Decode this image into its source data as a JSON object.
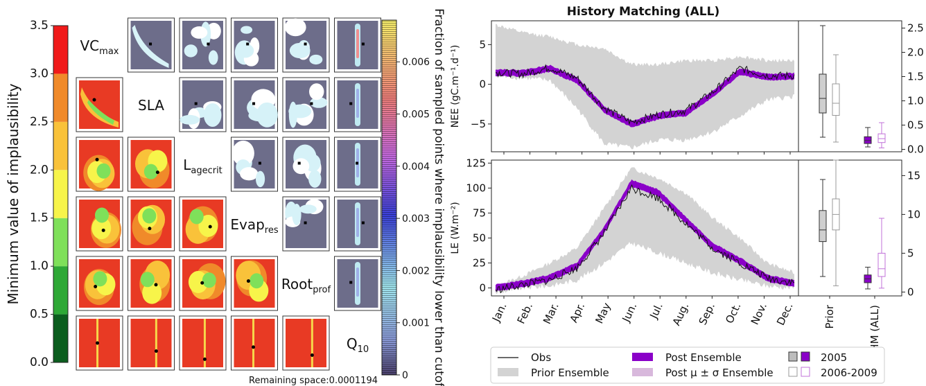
{
  "figure": {
    "title": "History Matching (ALL)",
    "footer": "Remaining space:0.0001194"
  },
  "chart_data": [
    {
      "type": "heatmap",
      "name": "implausibility-matrix",
      "parameters": [
        {
          "main": "VC",
          "sub": "max"
        },
        {
          "main": "SLA",
          "sub": ""
        },
        {
          "main": "L",
          "sub": "agecrit"
        },
        {
          "main": "Evap",
          "sub": "res"
        },
        {
          "main": "Root",
          "sub": "prof"
        },
        {
          "main": "Q",
          "sub": "10"
        }
      ],
      "left_colorbar": {
        "label": "Minimum value of implausibility",
        "ticks": [
          "0.0",
          "0.5",
          "1.0",
          "1.5",
          "2.0",
          "2.5",
          "3.0",
          "3.5"
        ],
        "ylim": [
          0,
          3.5
        ],
        "bands": [
          {
            "from": 0.0,
            "to": 0.5,
            "color": "#0b5d1e"
          },
          {
            "from": 0.5,
            "to": 1.0,
            "color": "#2ea836"
          },
          {
            "from": 1.0,
            "to": 1.5,
            "color": "#7fe05a"
          },
          {
            "from": 1.5,
            "to": 2.0,
            "color": "#f7f44a"
          },
          {
            "from": 2.0,
            "to": 2.5,
            "color": "#f9c23a"
          },
          {
            "from": 2.5,
            "to": 3.0,
            "color": "#f08a2a"
          },
          {
            "from": 3.0,
            "to": 3.5,
            "color": "#f01a1a"
          }
        ]
      },
      "right_colorbar": {
        "label": "Fraction of sampled points where implausibility lower than cutoff",
        "ticks": [
          "0",
          "0.001",
          "0.002",
          "0.003",
          "0.004",
          "0.005",
          "0.006"
        ],
        "ylim": [
          0,
          0.0068
        ]
      }
    },
    {
      "type": "line",
      "name": "nee-timeseries",
      "ylabel": "NEE (gC.m⁻¹.d⁻¹)",
      "ylim": [
        -8.5,
        8
      ],
      "yticks": [
        "−5",
        "0",
        "5"
      ],
      "x": [
        "Jan.",
        "Feb.",
        "Mar.",
        "Apr.",
        "May",
        "Jun.",
        "Jul.",
        "Aug.",
        "Sep.",
        "Oct.",
        "Nov.",
        "Dec."
      ],
      "series": [
        {
          "name": "Obs",
          "values": [
            1.5,
            1.3,
            2.1,
            0.8,
            -3.0,
            -4.8,
            -3.8,
            -3.3,
            -1.0,
            2.0,
            1.1,
            1.1
          ]
        },
        {
          "name": "Post Ensemble",
          "values": [
            1.5,
            1.4,
            2.0,
            0.5,
            -3.2,
            -5.0,
            -4.0,
            -3.6,
            -1.2,
            1.6,
            0.9,
            1.0
          ]
        },
        {
          "name": "Prior Ensemble",
          "lower": [
            1.0,
            0.8,
            0.5,
            -3.0,
            -7.5,
            -8.0,
            -7.0,
            -7.0,
            -6.0,
            -4.0,
            -2.0,
            -1.5
          ],
          "upper": [
            7.5,
            6.5,
            6.0,
            5.0,
            4.5,
            2.5,
            2.5,
            3.0,
            3.0,
            3.5,
            3.0,
            3.0
          ]
        }
      ]
    },
    {
      "type": "line",
      "name": "le-timeseries",
      "ylabel": "LE (W.m⁻²)",
      "ylim": [
        -8,
        128
      ],
      "yticks": [
        "0",
        "25",
        "50",
        "75",
        "100",
        "125"
      ],
      "x": [
        "Jan.",
        "Feb.",
        "Mar.",
        "Apr.",
        "May",
        "Jun.",
        "Jul.",
        "Aug.",
        "Sep.",
        "Oct.",
        "Nov.",
        "Dec."
      ],
      "series": [
        {
          "name": "Obs",
          "values": [
            -2,
            3,
            8,
            20,
            55,
            100,
            90,
            65,
            40,
            25,
            10,
            5
          ]
        },
        {
          "name": "Post Ensemble",
          "values": [
            0,
            4,
            10,
            22,
            58,
            105,
            95,
            68,
            42,
            27,
            10,
            4
          ]
        },
        {
          "name": "Prior Ensemble",
          "lower": [
            -5,
            0,
            2,
            8,
            25,
            45,
            35,
            25,
            15,
            8,
            2,
            0
          ],
          "upper": [
            2,
            12,
            25,
            40,
            80,
            120,
            110,
            95,
            70,
            50,
            25,
            15
          ]
        }
      ]
    },
    {
      "type": "box",
      "name": "nee-boxplots",
      "categories": [
        "Prior",
        "HM (ALL)"
      ],
      "ylim": [
        -0.05,
        2.65
      ],
      "yticks": [
        "0.0",
        "0.5",
        "1.0",
        "1.5",
        "2.0",
        "2.5"
      ],
      "boxes": [
        {
          "group": "Prior",
          "year": "2005",
          "min": 0.25,
          "q1": 0.75,
          "median": 1.05,
          "q3": 1.55,
          "max": 2.55
        },
        {
          "group": "Prior",
          "year": "2006-2009",
          "min": 0.15,
          "q1": 0.7,
          "median": 0.95,
          "q3": 1.35,
          "max": 1.95
        },
        {
          "group": "HM (ALL)",
          "year": "2005",
          "min": 0.05,
          "q1": 0.12,
          "median": 0.18,
          "q3": 0.26,
          "max": 0.45
        },
        {
          "group": "HM (ALL)",
          "year": "2006-2009",
          "min": 0.03,
          "q1": 0.14,
          "median": 0.22,
          "q3": 0.32,
          "max": 0.55
        }
      ]
    },
    {
      "type": "box",
      "name": "le-boxplots",
      "categories": [
        "Prior",
        "HM (ALL)"
      ],
      "ylim": [
        -0.5,
        17
      ],
      "yticks": [
        "0",
        "5",
        "10",
        "15"
      ],
      "boxes": [
        {
          "group": "Prior",
          "year": "2005",
          "min": 2,
          "q1": 6.5,
          "median": 8,
          "q3": 10.5,
          "max": 14.5
        },
        {
          "group": "Prior",
          "year": "2006-2009",
          "min": 0.8,
          "q1": 8.0,
          "median": 10.0,
          "q3": 12.0,
          "max": 17.0
        },
        {
          "group": "HM (ALL)",
          "year": "2005",
          "min": 0.4,
          "q1": 1.2,
          "median": 1.7,
          "q3": 2.2,
          "max": 3.2
        },
        {
          "group": "HM (ALL)",
          "year": "2006-2009",
          "min": 0.5,
          "q1": 2.0,
          "median": 3.0,
          "q3": 5.0,
          "max": 9.5
        }
      ]
    }
  ],
  "legend": [
    {
      "label": "Obs",
      "kind": "line",
      "color": "#111111"
    },
    {
      "label": "Prior Ensemble",
      "kind": "patch",
      "color": "#d3d3d3"
    },
    {
      "label": "Post Ensemble",
      "kind": "patch",
      "color": "#8a00c8"
    },
    {
      "label": "Post μ ± σ Ensemble",
      "kind": "patch",
      "color": "#d8b8dc"
    },
    {
      "label": "2005",
      "kind": "boxpair-filled"
    },
    {
      "label": "2006-2009",
      "kind": "boxpair-open"
    }
  ],
  "colors": {
    "obs": "#111111",
    "prior_fill": "#d3d3d3",
    "post": "#8a00c8",
    "post_sigma": "#d8b8dc",
    "prior_box": "#444444",
    "hm_box": "#8a00c8",
    "dark_bg": "#6d6d8a"
  }
}
